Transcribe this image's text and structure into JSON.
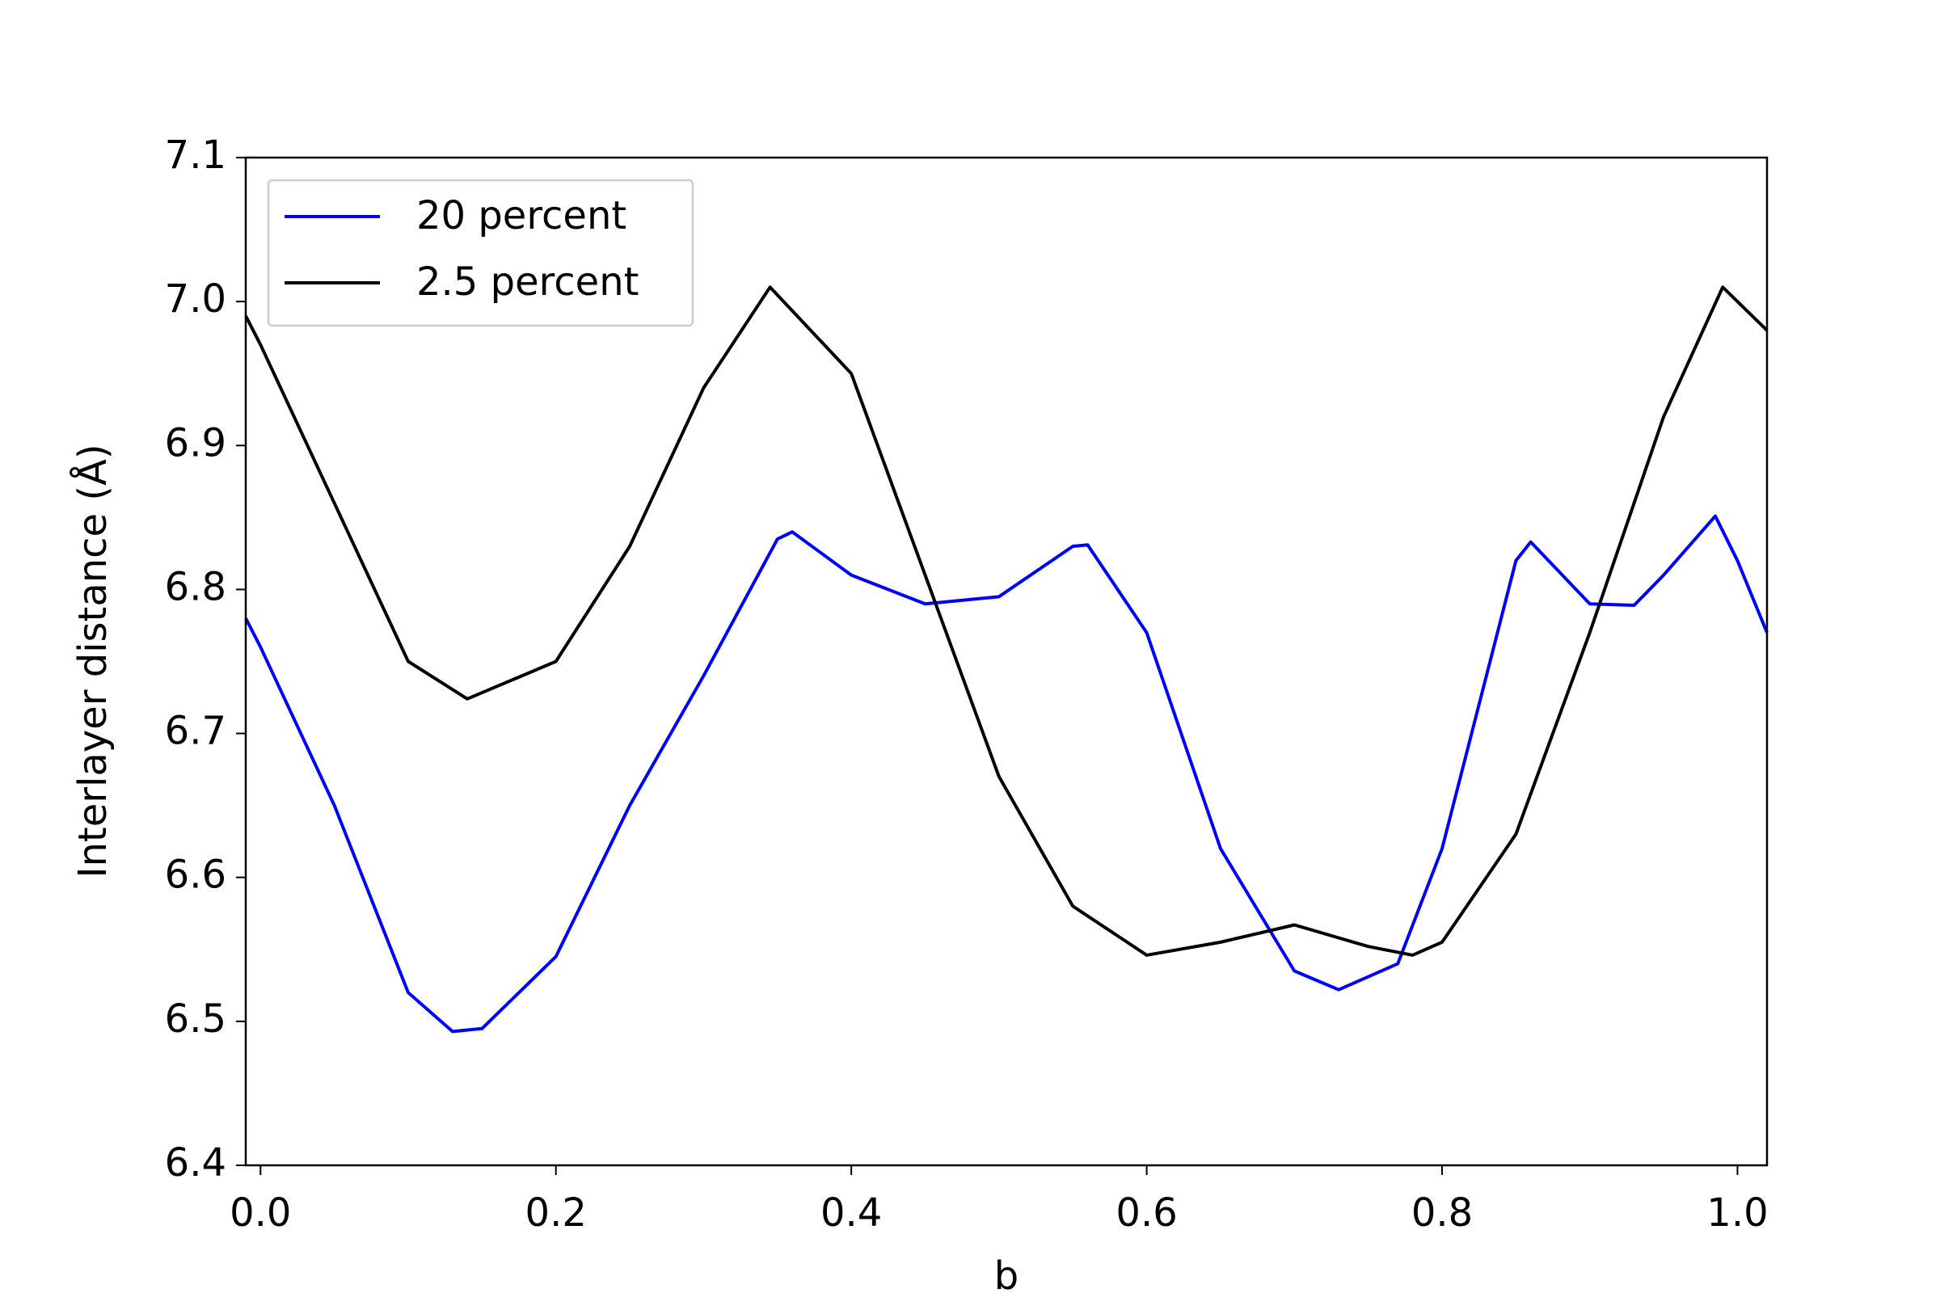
{
  "chart_data": {
    "type": "line",
    "xlabel": "b",
    "ylabel": "Interlayer distance (Å)",
    "xlim": [
      -0.01,
      1.02
    ],
    "ylim": [
      6.4,
      7.1
    ],
    "xticks": [
      {
        "value": 0,
        "label": "0.0"
      },
      0.2,
      0.4,
      0.6,
      0.8,
      {
        "value": 1,
        "label": "1.0"
      }
    ],
    "yticks": [
      6.4,
      6.5,
      6.6,
      6.7,
      6.8,
      6.9,
      {
        "value": 7,
        "label": "7.0"
      },
      7.1
    ],
    "grid": false,
    "legend": "upper left",
    "series": [
      {
        "name": "20 percent",
        "color": "#0000ff",
        "x": [
          -0.01,
          0.0,
          0.05,
          0.1,
          0.13,
          0.15,
          0.2,
          0.25,
          0.3,
          0.35,
          0.36,
          0.4,
          0.45,
          0.5,
          0.55,
          0.56,
          0.6,
          0.65,
          0.7,
          0.73,
          0.77,
          0.8,
          0.85,
          0.86,
          0.9,
          0.93,
          0.95,
          0.985,
          1.0,
          1.02
        ],
        "values": [
          6.78,
          6.76,
          6.65,
          6.52,
          6.493,
          6.495,
          6.545,
          6.65,
          6.74,
          6.835,
          6.84,
          6.81,
          6.79,
          6.795,
          6.83,
          6.831,
          6.77,
          6.62,
          6.535,
          6.522,
          6.54,
          6.62,
          6.82,
          6.833,
          6.79,
          6.789,
          6.81,
          6.851,
          6.82,
          6.77
        ]
      },
      {
        "name": "2.5 percent",
        "color": "#000000",
        "x": [
          -0.01,
          0.0,
          0.05,
          0.1,
          0.14,
          0.2,
          0.25,
          0.3,
          0.345,
          0.4,
          0.45,
          0.5,
          0.55,
          0.6,
          0.65,
          0.7,
          0.75,
          0.78,
          0.8,
          0.85,
          0.9,
          0.95,
          0.99,
          1.02
        ],
        "values": [
          6.99,
          6.97,
          6.86,
          6.75,
          6.724,
          6.75,
          6.83,
          6.94,
          7.01,
          6.95,
          6.81,
          6.67,
          6.58,
          6.546,
          6.555,
          6.567,
          6.552,
          6.546,
          6.555,
          6.63,
          6.77,
          6.92,
          7.01,
          6.98
        ]
      }
    ]
  }
}
